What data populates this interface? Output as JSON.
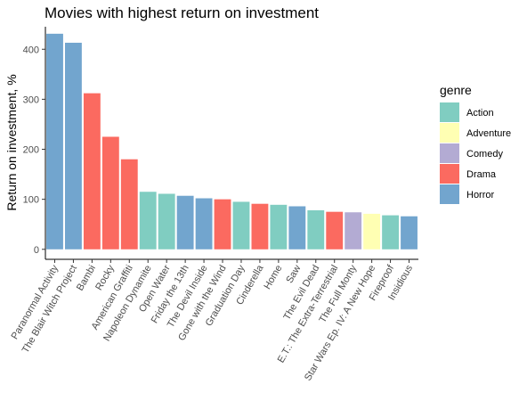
{
  "chart_data": {
    "type": "bar",
    "title": "Movies with highest return on investment",
    "xlabel": "",
    "ylabel": "Return on investment, %",
    "ylim": [
      -20,
      445
    ],
    "yticks": [
      0,
      100,
      200,
      300,
      400
    ],
    "grid": false,
    "legend_position": "right",
    "legend_title": "genre",
    "legend": [
      {
        "name": "Action",
        "color": "#80CDC1"
      },
      {
        "name": "Adventure",
        "color": "#FFFFB3"
      },
      {
        "name": "Comedy",
        "color": "#B3ABD3"
      },
      {
        "name": "Drama",
        "color": "#FB6A60"
      },
      {
        "name": "Horror",
        "color": "#72A5CE"
      }
    ],
    "categories": [
      "Paranormal Activity",
      "The Blair Witch Project",
      "Bambi",
      "Rocky",
      "American Graffiti",
      "Napoleon Dynamite",
      "Open Water",
      "Friday the 13th",
      "The Devil Inside",
      "Gone with the Wind",
      "Graduation Day",
      "Cinderella",
      "Home",
      "Saw",
      "The Evil Dead",
      "E.T.: The Extra-Terrestrial",
      "The Full Monty",
      "Star Wars Ep. IV: A New Hope",
      "Fireproof",
      "Insidious"
    ],
    "values": [
      431,
      413,
      312,
      225,
      180,
      115,
      111,
      107,
      102,
      100,
      95,
      91,
      89,
      86,
      78,
      75,
      74,
      71,
      68,
      66
    ],
    "genres": [
      "Horror",
      "Horror",
      "Drama",
      "Drama",
      "Drama",
      "Action",
      "Action",
      "Horror",
      "Horror",
      "Drama",
      "Action",
      "Drama",
      "Action",
      "Horror",
      "Action",
      "Drama",
      "Comedy",
      "Adventure",
      "Action",
      "Horror"
    ]
  }
}
